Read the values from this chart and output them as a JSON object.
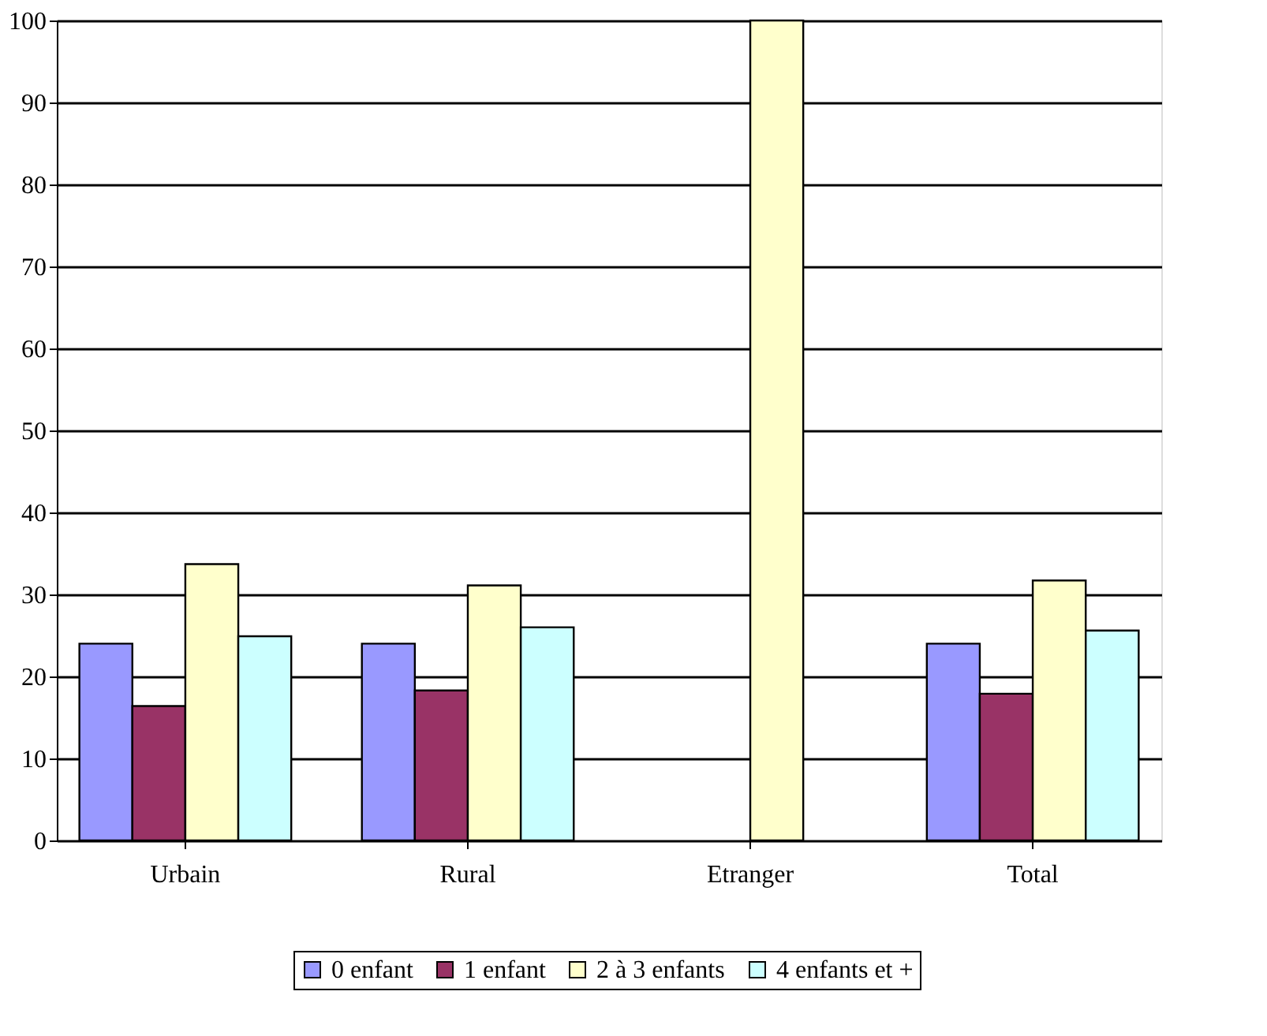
{
  "chart_data": {
    "type": "bar",
    "categories": [
      "Urbain",
      "Rural",
      "Etranger",
      "Total"
    ],
    "series": [
      {
        "name": "0 enfant",
        "color": "#9999ff",
        "values": [
          24,
          24,
          null,
          24
        ]
      },
      {
        "name": "1 enfant",
        "color": "#993366",
        "values": [
          16.4,
          18.3,
          null,
          17.9
        ]
      },
      {
        "name": "2 à 3 enfants",
        "color": "#ffffcc",
        "values": [
          33.7,
          31.1,
          100,
          31.7
        ]
      },
      {
        "name": "4 enfants et +",
        "color": "#ccffff",
        "values": [
          24.9,
          26,
          null,
          25.6
        ]
      }
    ],
    "ylim": [
      0,
      100
    ],
    "yticks": [
      0,
      10,
      20,
      30,
      40,
      50,
      60,
      70,
      80,
      90,
      100
    ],
    "grid": "y",
    "legend": "bottom"
  }
}
